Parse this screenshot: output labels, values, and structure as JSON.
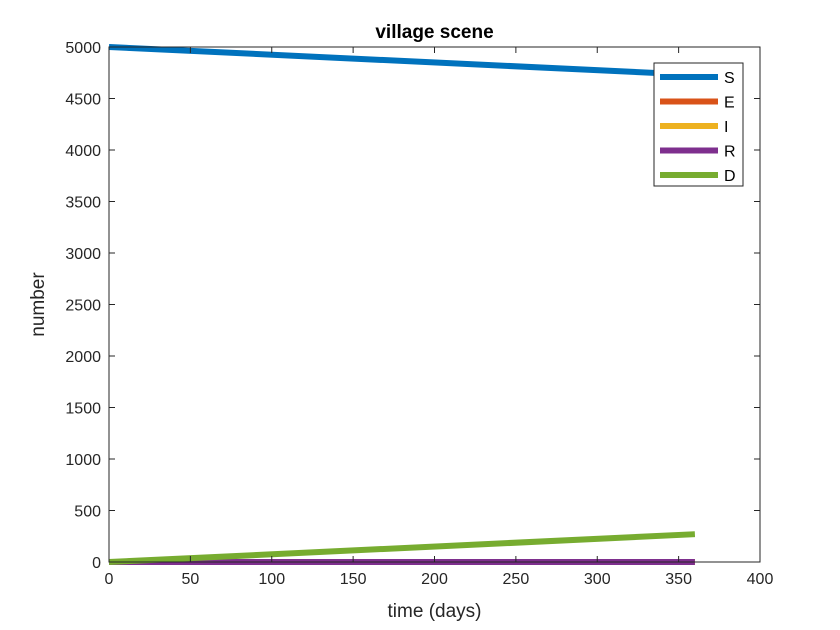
{
  "chart_data": {
    "type": "line",
    "title": "village scene",
    "xlabel": "time (days)",
    "ylabel": "number",
    "xlim": [
      0,
      400
    ],
    "ylim": [
      0,
      5000
    ],
    "xticks": [
      0,
      50,
      100,
      150,
      200,
      250,
      300,
      350,
      400
    ],
    "yticks": [
      0,
      500,
      1000,
      1500,
      2000,
      2500,
      3000,
      3500,
      4000,
      4500,
      5000
    ],
    "grid": false,
    "legend_position": "top-right",
    "series": [
      {
        "name": "S",
        "color": "#0072BD",
        "x": [
          0,
          360
        ],
        "y": [
          5000,
          4730
        ]
      },
      {
        "name": "E",
        "color": "#D95319",
        "x": [
          0,
          360
        ],
        "y": [
          0,
          0
        ]
      },
      {
        "name": "I",
        "color": "#EDB120",
        "x": [
          0,
          360
        ],
        "y": [
          0,
          0
        ]
      },
      {
        "name": "R",
        "color": "#7E2F8E",
        "x": [
          0,
          360
        ],
        "y": [
          0,
          0
        ]
      },
      {
        "name": "D",
        "color": "#77AC30",
        "x": [
          0,
          360
        ],
        "y": [
          0,
          270
        ]
      }
    ]
  }
}
